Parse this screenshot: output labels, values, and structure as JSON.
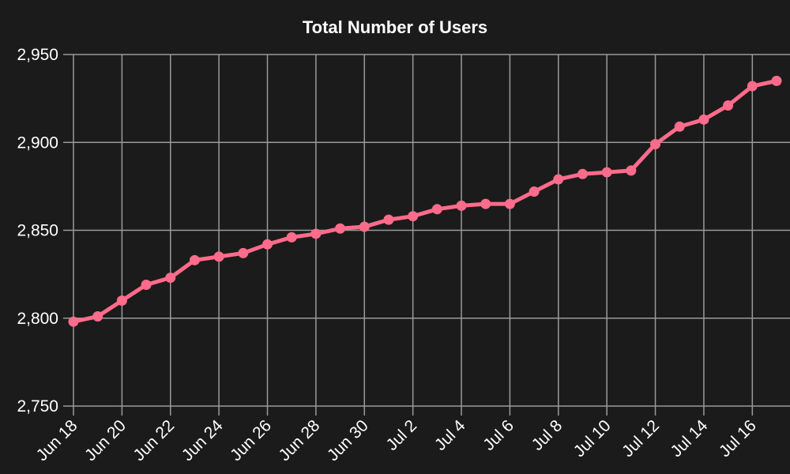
{
  "chart_data": {
    "type": "line",
    "title": "Total Number of Users",
    "xlabel": "",
    "ylabel": "",
    "x": [
      "Jun 18",
      "Jun 19",
      "Jun 20",
      "Jun 21",
      "Jun 22",
      "Jun 23",
      "Jun 24",
      "Jun 25",
      "Jun 26",
      "Jun 27",
      "Jun 28",
      "Jun 29",
      "Jun 30",
      "Jul 1",
      "Jul 2",
      "Jul 3",
      "Jul 4",
      "Jul 5",
      "Jul 6",
      "Jul 7",
      "Jul 8",
      "Jul 9",
      "Jul 10",
      "Jul 11",
      "Jul 12",
      "Jul 13",
      "Jul 14",
      "Jul 15",
      "Jul 16",
      "Jul 17"
    ],
    "series": [
      {
        "values": [
          2798,
          2801,
          2810,
          2819,
          2823,
          2833,
          2835,
          2837,
          2842,
          2846,
          2848,
          2851,
          2852,
          2856,
          2858,
          2862,
          2864,
          2865,
          2865,
          2872,
          2879,
          2882,
          2883,
          2884,
          2899,
          2909,
          2913,
          2921,
          2932,
          2935
        ]
      }
    ],
    "x_tick_labels": [
      "Jun 18",
      "Jun 20",
      "Jun 22",
      "Jun 24",
      "Jun 26",
      "Jun 28",
      "Jun 30",
      "Jul 2",
      "Jul 4",
      "Jul 6",
      "Jul 8",
      "Jul 10",
      "Jul 12",
      "Jul 14",
      "Jul 16"
    ],
    "y_ticks": [
      2750,
      2800,
      2850,
      2900,
      2950
    ],
    "y_tick_labels": [
      "2,750",
      "2,800",
      "2,850",
      "2,900",
      "2,950"
    ],
    "ylim": [
      2750,
      2950
    ],
    "grid": true,
    "legend": "none",
    "colors": {
      "background": "#1b1b1b",
      "line": "#ff6b8b",
      "grid": "#9a9a9a",
      "text": "#ffffff"
    }
  }
}
